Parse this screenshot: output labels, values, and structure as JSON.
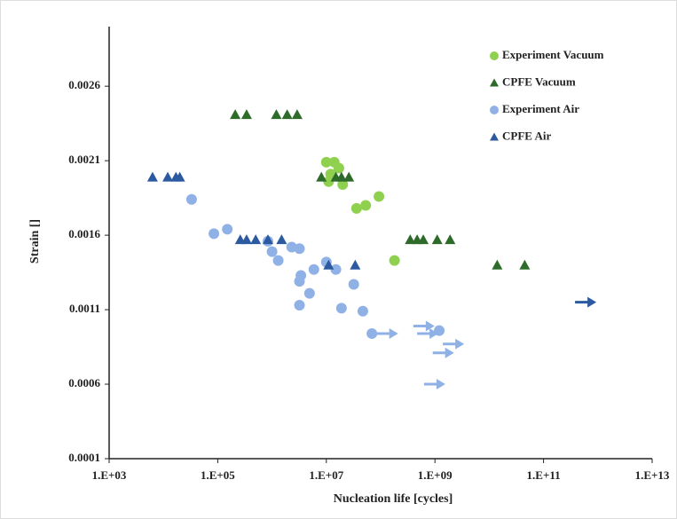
{
  "chart_data": {
    "type": "scatter",
    "x_label": "Nucleation life [cycles]",
    "y_label": "Strain []",
    "xscale": "log",
    "xlim": [
      1000,
      10000000000000
    ],
    "xticks": [
      {
        "value": 1000,
        "label": "1.E+03"
      },
      {
        "value": 100000,
        "label": "1.E+05"
      },
      {
        "value": 10000000,
        "label": "1.E+07"
      },
      {
        "value": 1000000000,
        "label": "1.E+09"
      },
      {
        "value": 100000000000,
        "label": "1.E+11"
      },
      {
        "value": 10000000000000,
        "label": "1.E+13"
      }
    ],
    "ylim": [
      0.0001,
      0.003
    ],
    "yticks": [
      0.0001,
      0.0006,
      0.0011,
      0.0016,
      0.0021,
      0.0026
    ],
    "grid": false,
    "legend": "top-right",
    "series": [
      {
        "name": "Experiment Vacuum",
        "color": "#8fd14f",
        "marker": "circle",
        "x": [
          10000000,
          14000000,
          17000000,
          12000000,
          11000000,
          20000000,
          36000000,
          53000000,
          93000000,
          180000000
        ],
        "values": [
          0.00209,
          0.00209,
          0.00205,
          0.00201,
          0.00196,
          0.00194,
          0.00178,
          0.0018,
          0.00186,
          0.00143
        ]
      },
      {
        "name": "CPFE Vacuum",
        "color": "#2e6b2a",
        "marker": "triangle",
        "x": [
          210000,
          340000,
          1200000,
          1900000,
          2900000,
          8100000,
          15000000,
          19000000,
          26000000,
          350000000,
          470000000,
          610000000,
          1100000000,
          1900000000,
          14000000000,
          45000000000
        ],
        "values": [
          0.00241,
          0.00241,
          0.00241,
          0.00241,
          0.00241,
          0.00199,
          0.00199,
          0.00199,
          0.00199,
          0.00157,
          0.00157,
          0.00157,
          0.00157,
          0.00157,
          0.0014,
          0.0014
        ]
      },
      {
        "name": "Experiment Air",
        "color": "#8fb1e6",
        "marker": "circle",
        "x": [
          33000,
          85000,
          150000,
          840000,
          1000000,
          1300000,
          2300000,
          3200000,
          3400000,
          3200000,
          4900000,
          5900000,
          3200000,
          10000000,
          15000000,
          19000000,
          32000000,
          47000000,
          69000000,
          1200000000
        ],
        "values": [
          0.00184,
          0.00161,
          0.00164,
          0.00156,
          0.00149,
          0.00143,
          0.00152,
          0.00151,
          0.00133,
          0.00129,
          0.00121,
          0.00137,
          0.00113,
          0.00142,
          0.00137,
          0.00111,
          0.00127,
          0.00109,
          0.00094,
          0.00096
        ]
      },
      {
        "name": "CPFE Air",
        "color": "#2c5aa0",
        "marker": "triangle",
        "x": [
          6300,
          12000,
          17000,
          20000,
          260000,
          340000,
          500000,
          840000,
          1500000,
          11000000,
          34000000
        ],
        "values": [
          0.00199,
          0.00199,
          0.00199,
          0.00199,
          0.00157,
          0.00157,
          0.00157,
          0.00157,
          0.00157,
          0.0014,
          0.0014
        ]
      }
    ],
    "runouts": [
      {
        "color": "#8fb1e6",
        "x": [
          85000000,
          400000000,
          470000000,
          910000000,
          1400000000,
          630000000
        ],
        "values": [
          0.00094,
          0.00099,
          0.00094,
          0.00081,
          0.00087,
          0.0006
        ]
      },
      {
        "color": "#2c5aa0",
        "x": [
          380000000000
        ],
        "values": [
          0.00115
        ]
      }
    ]
  }
}
